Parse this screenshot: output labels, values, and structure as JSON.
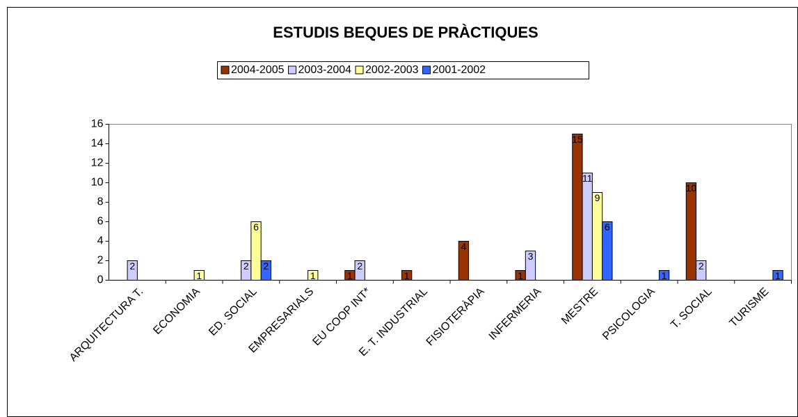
{
  "chart_data": {
    "type": "bar",
    "title": "ESTUDIS BEQUES DE PRÀCTIQUES",
    "categories": [
      "ARQUITECTURA T.",
      "ECONOMIA",
      "ED. SOCIAL",
      "EMPRESARIALS",
      "EU COOP INT*",
      "E. T. INDUSTRIAL",
      "FISIOTERÀPIA",
      "INFERMERIA",
      "MESTRE",
      "PSICOLOGIA",
      "T. SOCIAL",
      "TURISME"
    ],
    "series": [
      {
        "name": "2004-2005",
        "color": "#993300",
        "values": [
          null,
          null,
          null,
          null,
          1,
          1,
          4,
          1,
          15,
          null,
          10,
          null
        ]
      },
      {
        "name": "2003-2004",
        "color": "#ccccff",
        "values": [
          2,
          null,
          2,
          null,
          2,
          null,
          null,
          3,
          11,
          null,
          2,
          null
        ]
      },
      {
        "name": "2002-2003",
        "color": "#ffff99",
        "values": [
          null,
          1,
          6,
          1,
          null,
          null,
          null,
          null,
          9,
          null,
          null,
          null
        ]
      },
      {
        "name": "2001-2002",
        "color": "#3366ff",
        "values": [
          null,
          null,
          2,
          null,
          null,
          null,
          null,
          null,
          6,
          1,
          null,
          1
        ]
      }
    ],
    "ylim": [
      0,
      16
    ],
    "yticks": [
      0,
      2,
      4,
      6,
      8,
      10,
      12,
      14,
      16
    ]
  }
}
